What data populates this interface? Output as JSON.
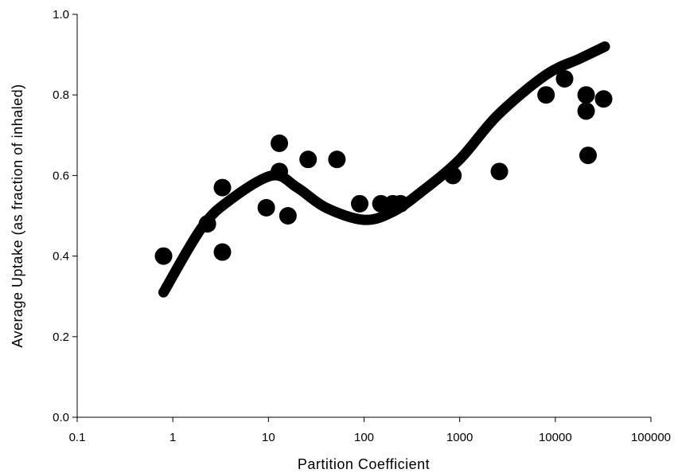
{
  "chart_data": {
    "type": "scatter",
    "title": "",
    "xlabel": "Partition Coefficient",
    "ylabel": "Average Uptake (as fraction of inhaled)",
    "x_scale": "log",
    "xlim": [
      0.1,
      100000
    ],
    "ylim": [
      0.0,
      1.0
    ],
    "x_ticks": [
      "0.1",
      "1",
      "10",
      "100",
      "1000",
      "10000",
      "100000"
    ],
    "y_ticks": [
      "0.0",
      "0.2",
      "0.4",
      "0.6",
      "0.8",
      "1.0"
    ],
    "grid": false,
    "legend": "none",
    "series": [
      {
        "type": "scatter",
        "color": "#000000",
        "points": [
          {
            "x": 0.8,
            "y": 0.4
          },
          {
            "x": 2.3,
            "y": 0.48
          },
          {
            "x": 3.3,
            "y": 0.57
          },
          {
            "x": 3.3,
            "y": 0.41
          },
          {
            "x": 9.5,
            "y": 0.52
          },
          {
            "x": 13,
            "y": 0.68
          },
          {
            "x": 13,
            "y": 0.61
          },
          {
            "x": 16,
            "y": 0.5
          },
          {
            "x": 26,
            "y": 0.64
          },
          {
            "x": 52,
            "y": 0.64
          },
          {
            "x": 90,
            "y": 0.53
          },
          {
            "x": 150,
            "y": 0.53
          },
          {
            "x": 200,
            "y": 0.53
          },
          {
            "x": 240,
            "y": 0.53
          },
          {
            "x": 850,
            "y": 0.6
          },
          {
            "x": 2600,
            "y": 0.61
          },
          {
            "x": 8000,
            "y": 0.8
          },
          {
            "x": 12500,
            "y": 0.84
          },
          {
            "x": 21000,
            "y": 0.8
          },
          {
            "x": 21000,
            "y": 0.76
          },
          {
            "x": 22000,
            "y": 0.65
          },
          {
            "x": 32000,
            "y": 0.79
          }
        ]
      },
      {
        "type": "line",
        "color": "#000000",
        "points": [
          {
            "x": 0.8,
            "y": 0.31
          },
          {
            "x": 2.0,
            "y": 0.47
          },
          {
            "x": 4.0,
            "y": 0.54
          },
          {
            "x": 11,
            "y": 0.6
          },
          {
            "x": 20,
            "y": 0.57
          },
          {
            "x": 40,
            "y": 0.52
          },
          {
            "x": 100,
            "y": 0.49
          },
          {
            "x": 200,
            "y": 0.51
          },
          {
            "x": 400,
            "y": 0.56
          },
          {
            "x": 1000,
            "y": 0.64
          },
          {
            "x": 2500,
            "y": 0.75
          },
          {
            "x": 8000,
            "y": 0.85
          },
          {
            "x": 18000,
            "y": 0.89
          },
          {
            "x": 33000,
            "y": 0.92
          }
        ]
      }
    ]
  }
}
